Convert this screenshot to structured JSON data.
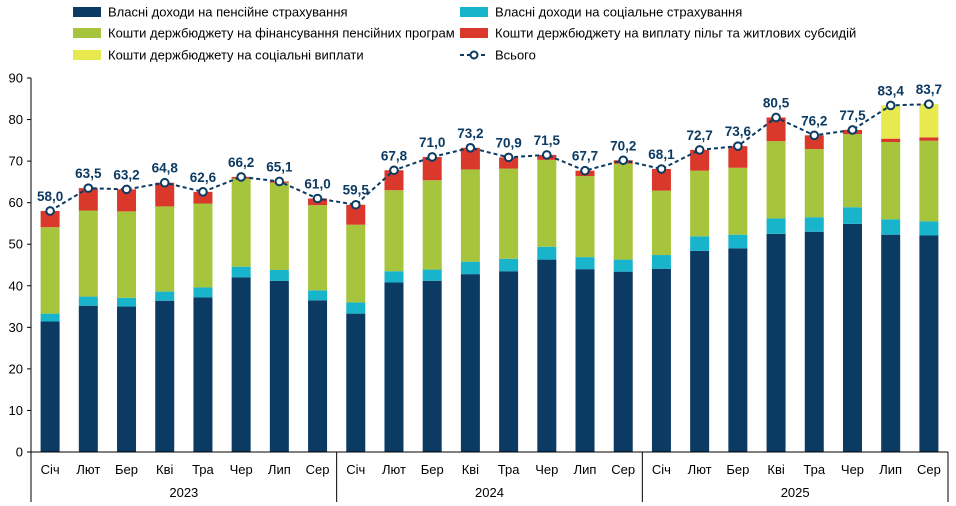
{
  "chart_data": {
    "type": "bar",
    "stacked": true,
    "title": "",
    "xlabel": "",
    "ylabel": "",
    "ylim": [
      0,
      90
    ],
    "yticks": [
      0,
      10,
      20,
      30,
      40,
      50,
      60,
      70,
      80,
      90
    ],
    "grid": false,
    "legend_position": "top",
    "categories": [
      "Січ",
      "Лют",
      "Бер",
      "Кві",
      "Тра",
      "Чер",
      "Лип",
      "Сер",
      "Січ",
      "Лют",
      "Бер",
      "Кві",
      "Тра",
      "Чер",
      "Лип",
      "Сер",
      "Січ",
      "Лют",
      "Бер",
      "Кві",
      "Тра",
      "Чер",
      "Лип",
      "Сер"
    ],
    "groups": [
      {
        "label": "2023",
        "count": 8
      },
      {
        "label": "2024",
        "count": 8
      },
      {
        "label": "2025",
        "count": 8
      }
    ],
    "series": [
      {
        "name": "Власні доходи на пенсійне страхування",
        "color": "#0b3a62",
        "values": [
          31.4,
          35.2,
          35.0,
          36.4,
          37.2,
          42.0,
          41.2,
          36.5,
          33.3,
          40.8,
          41.2,
          42.8,
          43.5,
          46.3,
          44.0,
          43.4,
          44.1,
          48.4,
          49.0,
          52.5,
          53.0,
          54.9,
          52.3,
          52.1
        ]
      },
      {
        "name": "Власні доходи на соціальне страхування",
        "color": "#18b4cc",
        "values": [
          1.9,
          2.2,
          2.1,
          2.2,
          2.4,
          2.6,
          2.6,
          2.4,
          2.7,
          2.7,
          2.7,
          3.0,
          3.0,
          3.1,
          2.9,
          2.9,
          3.3,
          3.5,
          3.3,
          3.7,
          3.5,
          4.0,
          3.7,
          3.4
        ]
      },
      {
        "name": "Кошти держбюджету на фінансування пенсійних програм",
        "color": "#a6c43c",
        "values": [
          20.8,
          20.7,
          20.8,
          20.5,
          20.2,
          21.2,
          21.0,
          20.5,
          18.7,
          19.5,
          21.5,
          22.2,
          21.7,
          20.9,
          19.5,
          23.1,
          15.5,
          15.8,
          16.1,
          18.6,
          16.4,
          17.6,
          18.6,
          19.4
        ]
      },
      {
        "name": "Кошти держбюджету на виплату пільг та житлових субсидій",
        "color": "#d9382b",
        "values": [
          3.9,
          5.4,
          5.3,
          5.7,
          2.8,
          0.4,
          0.3,
          1.6,
          4.8,
          4.8,
          5.6,
          5.2,
          2.7,
          1.2,
          1.3,
          0.8,
          5.2,
          5.0,
          5.2,
          5.7,
          3.3,
          1.0,
          0.8,
          0.8
        ]
      },
      {
        "name": "Кошти держбюджету на соціальні виплати",
        "color": "#e7e94e",
        "values": [
          0,
          0,
          0,
          0,
          0,
          0,
          0,
          0,
          0,
          0,
          0,
          0,
          0,
          0,
          0,
          0,
          0,
          0,
          0,
          0,
          0,
          0,
          8.0,
          8.0
        ]
      },
      {
        "name": "Всього",
        "type": "line",
        "color": "#0b3a62",
        "values": [
          58.0,
          63.5,
          63.2,
          64.8,
          62.6,
          66.2,
          65.1,
          61.0,
          59.5,
          67.8,
          71.0,
          73.2,
          70.9,
          71.5,
          67.7,
          70.2,
          68.1,
          72.7,
          73.6,
          80.5,
          76.2,
          77.5,
          83.4,
          83.7
        ],
        "labels": [
          "58,0",
          "63,5",
          "63,2",
          "64,8",
          "62,6",
          "66,2",
          "65,1",
          "61,0",
          "59,5",
          "67,8",
          "71,0",
          "73,2",
          "70,9",
          "71,5",
          "67,7",
          "70,2",
          "68,1",
          "72,7",
          "73,6",
          "80,5",
          "76,2",
          "77,5",
          "83,4",
          "83,7"
        ]
      }
    ]
  }
}
